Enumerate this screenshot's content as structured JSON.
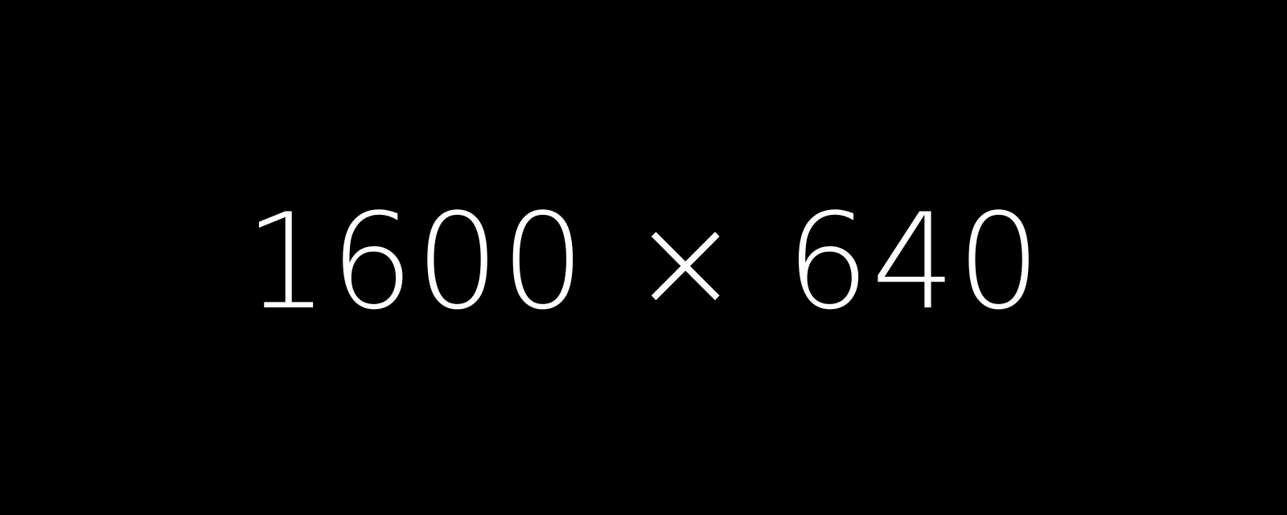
{
  "placeholder": {
    "text": "1600 × 640",
    "background_color": "#000000",
    "text_color": "#ffffff"
  }
}
